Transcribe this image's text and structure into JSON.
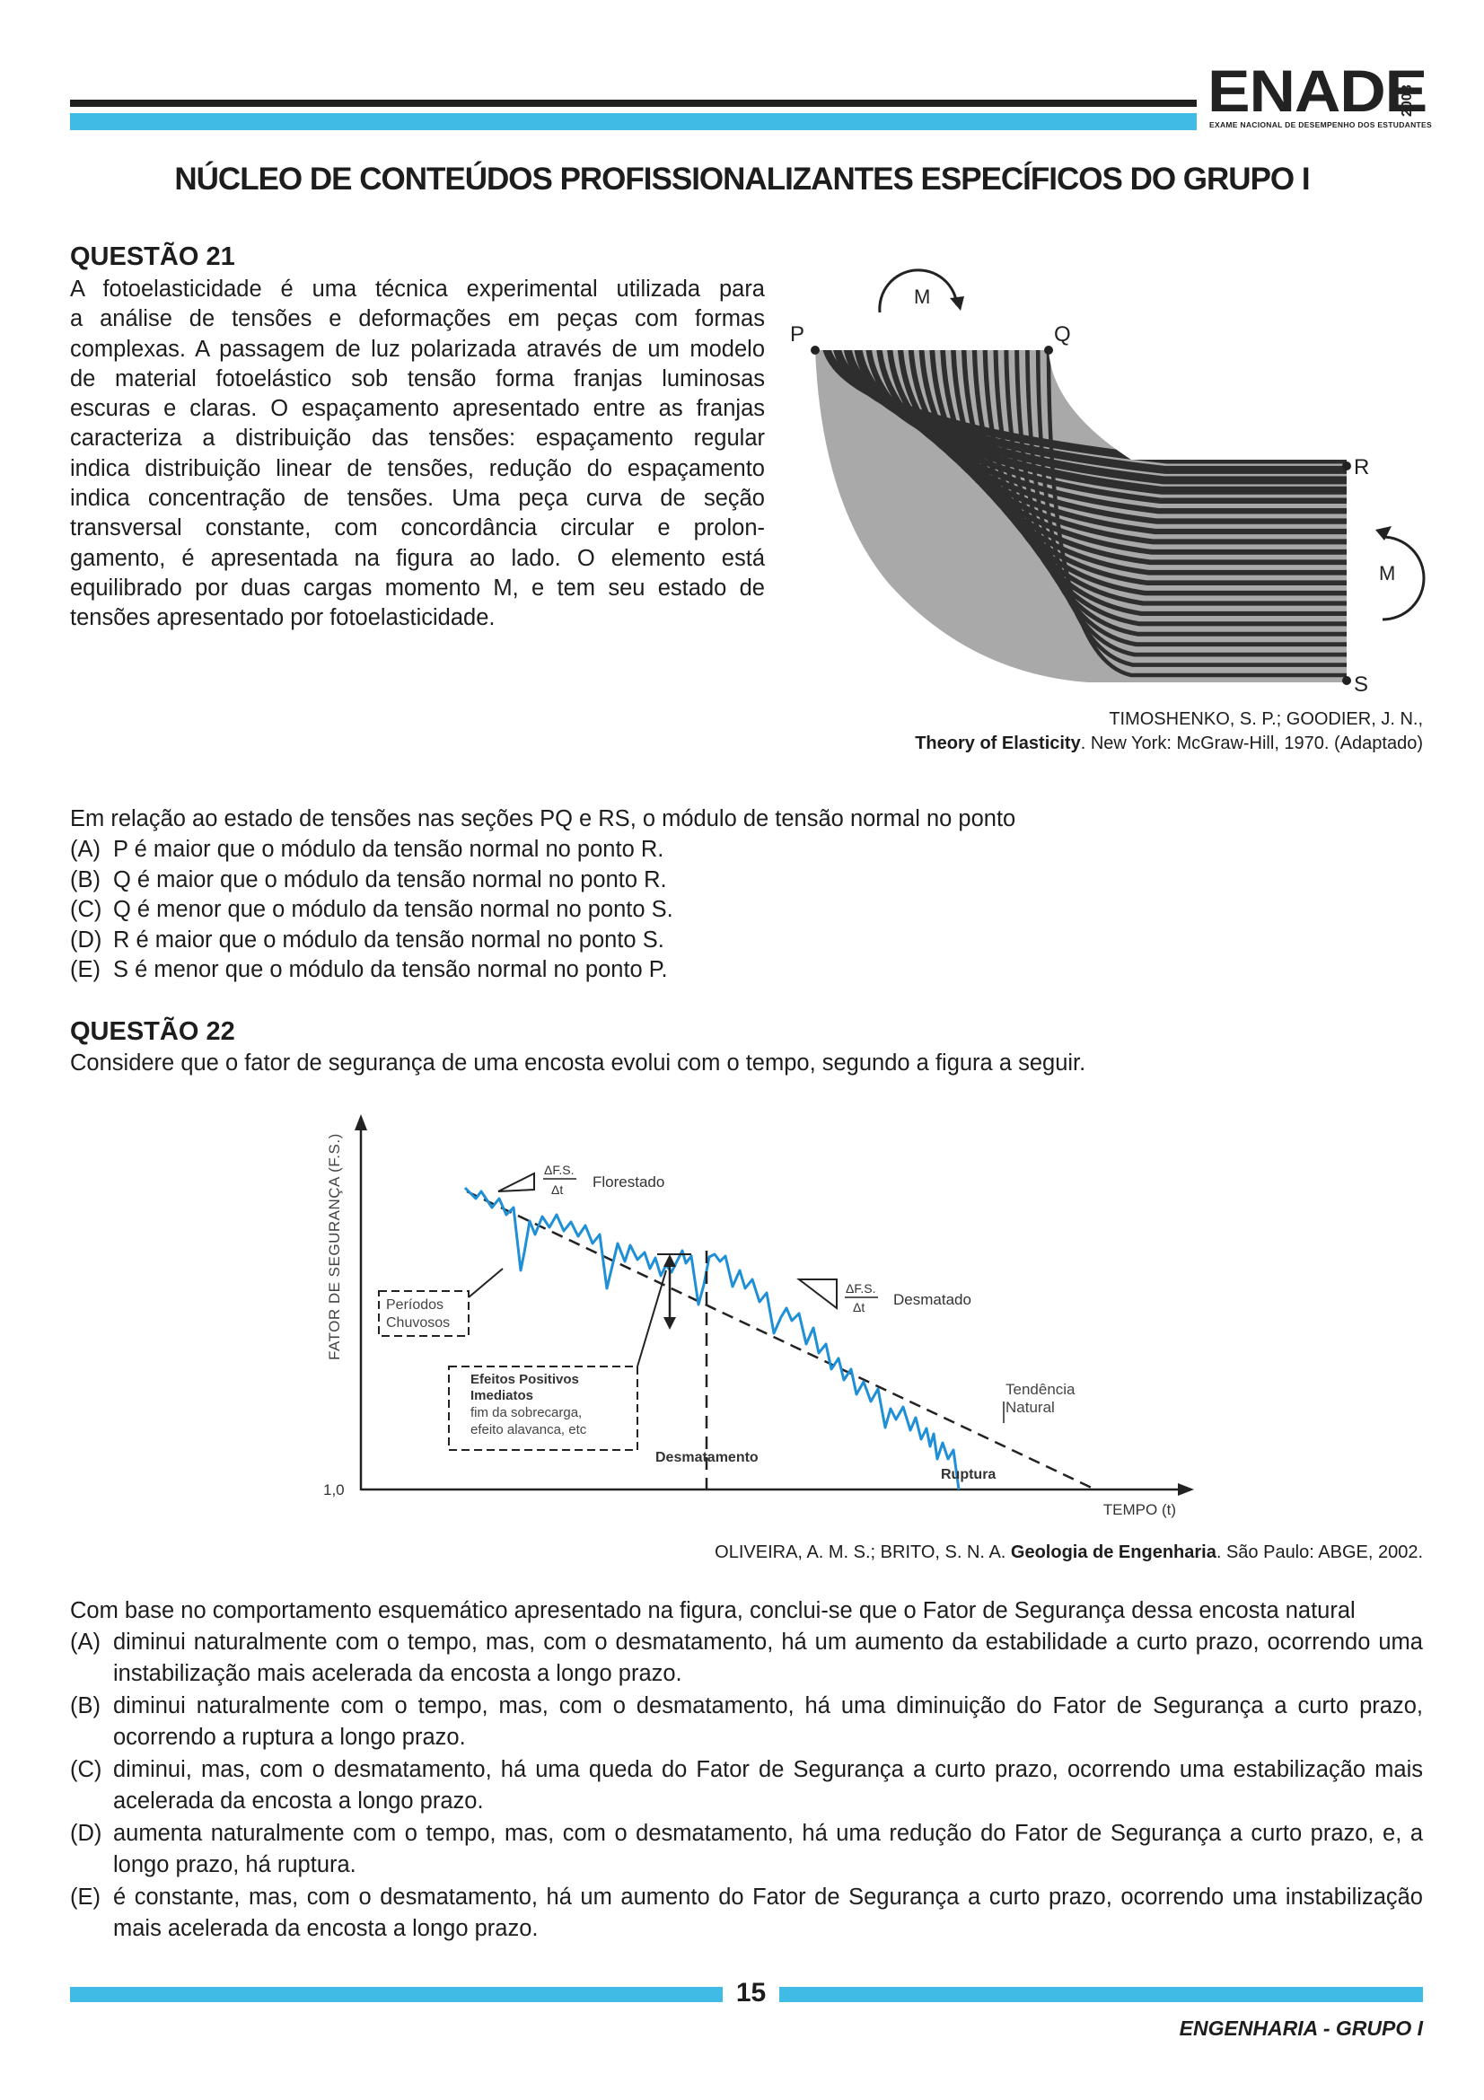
{
  "header": {
    "logo_word": "ENADE",
    "logo_year": "2008",
    "logo_sub": "EXAME NACIONAL DE DESEMPENHO DOS ESTUDANTES",
    "section_title": "NÚCLEO DE CONTEÚDOS PROFISSIONALIZANTES ESPECÍFICOS DO GRUPO I"
  },
  "q21": {
    "title": "QUESTÃO 21",
    "lines": [
      "A fotoelasticidade é uma técnica experimental utilizada para",
      "a análise de tensões e deformações em peças com formas",
      "complexas. A passagem de luz polarizada através de um modelo",
      "de material fotoelástico sob tensão forma franjas luminosas",
      "escuras e claras. O espaçamento apresentado entre as franjas",
      "caracteriza a distribuição das tensões: espaçamento regular",
      "indica distribuição linear de tensões, redução do espaçamento",
      "indica concentração de tensões. Uma peça curva de seção",
      "transversal constante, com concordância circular e prolon-",
      "gamento, é apresentada na figura ao lado. O elemento está",
      "equilibrado por duas cargas momento M, e tem seu estado de",
      "tensões apresentado por fotoelasticidade."
    ],
    "figure": {
      "label_p": "P",
      "label_q": "Q",
      "label_r": "R",
      "label_s": "S",
      "label_m_top": "M",
      "label_m_right": "M"
    },
    "citation_line1": "TIMOSHENKO, S. P.; GOODIER, J. N.,",
    "citation_book": "Theory of Elasticity",
    "citation_rest": ". New York: McGraw-Hill, 1970. (Adaptado)",
    "stem": "Em relação ao estado de tensões nas seções PQ e RS, o módulo de tensão normal no ponto",
    "options": [
      {
        "letter": "(A)",
        "text": "P é maior que o módulo da tensão normal no ponto R."
      },
      {
        "letter": "(B)",
        "text": "Q é maior que o módulo da tensão normal no ponto R."
      },
      {
        "letter": "(C)",
        "text": "Q é menor que o módulo da tensão normal no ponto S."
      },
      {
        "letter": "(D)",
        "text": "R é maior que o módulo da tensão normal no ponto S."
      },
      {
        "letter": "(E)",
        "text": "S é menor que o módulo da tensão normal no ponto P."
      }
    ]
  },
  "q22": {
    "title": "QUESTÃO 22",
    "intro": "Considere que o fator de segurança de uma encosta evolui com o tempo, segundo a figura a seguir.",
    "chart": {
      "y_axis_label": "FATOR DE SEGURANÇA (F.S.)",
      "x_axis_label": "TEMPO (t)",
      "y_origin_label": "1,0",
      "delta_fs": "ΔF.S.",
      "delta_t": "Δt",
      "florestado": "Florestado",
      "desmatado": "Desmatado",
      "periodos_1": "Períodos",
      "periodos_2": "Chuvosos",
      "efeitos_1": "Efeitos Positivos",
      "efeitos_2": "Imediatos",
      "efeitos_3": "fim da sobrecarga,",
      "efeitos_4": "efeito alavanca, etc",
      "desmatamento": "Desmatamento",
      "ruptura": "Ruptura",
      "tendencia_1": "Tendência",
      "tendencia_2": "Natural",
      "line_color": "#1f8fd6"
    },
    "citation_pre": "OLIVEIRA, A. M. S.; BRITO, S. N. A. ",
    "citation_book": "Geologia de Engenharia",
    "citation_rest": ". São Paulo: ABGE, 2002.",
    "stem": "Com base no comportamento esquemático apresentado na figura, conclui-se que o Fator de Segurança dessa encosta natural",
    "options": [
      {
        "letter": "(A)",
        "text": "diminui naturalmente com o tempo, mas, com o desmatamento, há um aumento da estabilidade a curto prazo, ocorrendo uma instabilização mais acelerada da encosta a longo prazo."
      },
      {
        "letter": "(B)",
        "text": "diminui naturalmente com o tempo, mas, com o desmatamento, há uma diminuição do Fator de Segurança a curto prazo, ocorrendo a ruptura a longo prazo."
      },
      {
        "letter": "(C)",
        "text": "diminui, mas, com o desmatamento, há uma queda do Fator de Segurança a curto prazo, ocorrendo uma estabilização mais acelerada da encosta a longo prazo."
      },
      {
        "letter": "(D)",
        "text": "aumenta naturalmente com o tempo, mas, com o desmatamento, há uma redução do Fator de Segurança a curto prazo, e, a longo prazo, há ruptura."
      },
      {
        "letter": "(E)",
        "text": "é constante, mas, com o desmatamento, há um aumento do Fator de Segurança a curto prazo, ocorrendo uma instabilização mais acelerada da encosta a longo prazo."
      }
    ]
  },
  "footer": {
    "page_number": "15",
    "course": "ENGENHARIA - GRUPO I"
  }
}
